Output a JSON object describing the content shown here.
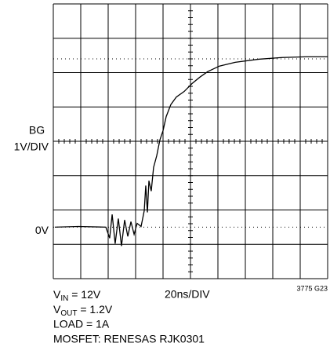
{
  "chart_data": {
    "type": "line",
    "ylabel_lines": [
      "BG",
      "1V/DIV"
    ],
    "xlabel": "20ns/DIV",
    "figure_id": "3775 G23",
    "xlim": [
      0,
      200
    ],
    "ylim": [
      -1.5,
      6.5
    ],
    "yticks": [
      {
        "value": 0,
        "label": "0V"
      }
    ],
    "grid": true,
    "series": [
      {
        "color": "#000000",
        "x": [
          1.1,
          18.3,
          38.3,
          41.1,
          42.9,
          45.1,
          47.4,
          49.7,
          52,
          54.3,
          56.6,
          58.9,
          61.1,
          64,
          66.3,
          67.4,
          68.6,
          69.7,
          71.4,
          73.1,
          75.4,
          77.7,
          80,
          82.3,
          85.7,
          89.7,
          95.4,
          101.1,
          106.9,
          112.6,
          121.1,
          132.6,
          149.7,
          166.9,
          184,
          200
        ],
        "values": [
          0,
          0.02,
          0,
          -0.32,
          0.37,
          -0.48,
          0.25,
          -0.55,
          0.21,
          -0.27,
          0.16,
          -0.21,
          0.11,
          0.02,
          0.48,
          1.21,
          0.43,
          1.35,
          1.05,
          1.74,
          2.08,
          2.54,
          2.81,
          3.22,
          3.57,
          3.79,
          3.95,
          4.18,
          4.37,
          4.53,
          4.69,
          4.8,
          4.89,
          4.94,
          4.96,
          4.96
        ]
      }
    ],
    "notes": [
      {
        "main": "V",
        "sub": "IN",
        "rest": " = 12V"
      },
      {
        "main": "V",
        "sub": "OUT",
        "rest": " = 1.2V"
      },
      {
        "main": "LOAD = 1A"
      },
      {
        "main": "MOSFET: RENESAS RJK0301"
      }
    ]
  }
}
